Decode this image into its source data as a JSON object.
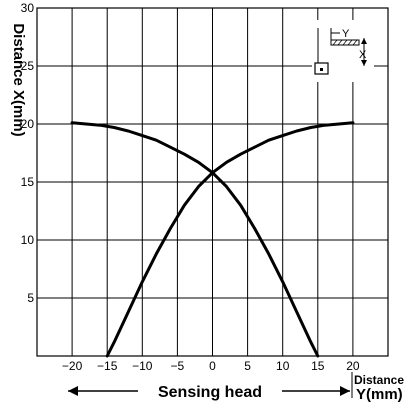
{
  "chart_data": {
    "type": "line",
    "ylabel": "Distance X(mm)",
    "xlabel": "Sensing head",
    "xlabel_right_top": "Distance",
    "xlabel_right_bottom": "Y(mm)",
    "xlim": [
      -25,
      25
    ],
    "ylim": [
      0,
      30
    ],
    "x_ticks": [
      -20,
      -15,
      -10,
      -5,
      0,
      5,
      10,
      15,
      20
    ],
    "x_tick_labels": [
      "−20",
      "−15",
      "−10",
      "−5",
      "0",
      "5",
      "10",
      "15",
      "20"
    ],
    "y_ticks": [
      5,
      10,
      15,
      20,
      25,
      30
    ],
    "y_tick_labels": [
      "5",
      "10",
      "15",
      "20",
      "25",
      "30"
    ],
    "grid": true,
    "series": [
      {
        "x": [
          -20,
          -18,
          -16,
          -14,
          -12,
          -10,
          -8,
          -6,
          -4,
          -2,
          0,
          2,
          4,
          6,
          8,
          10,
          12,
          14,
          15
        ],
        "y": [
          20.1,
          20.0,
          19.9,
          19.7,
          19.4,
          19.0,
          18.6,
          18.0,
          17.4,
          16.7,
          15.8,
          14.6,
          13.0,
          11.0,
          8.8,
          6.4,
          3.8,
          1.2,
          0.0
        ]
      },
      {
        "x": [
          -15,
          -14,
          -12,
          -10,
          -8,
          -6,
          -4,
          -2,
          0,
          2,
          4,
          6,
          8,
          10,
          12,
          14,
          16,
          18,
          20
        ],
        "y": [
          0.0,
          1.2,
          3.8,
          6.4,
          8.8,
          11.0,
          13.0,
          14.6,
          15.8,
          16.7,
          17.4,
          18.0,
          18.6,
          19.0,
          19.4,
          19.7,
          19.9,
          20.0,
          20.1
        ]
      }
    ],
    "inset_labels": {
      "y": "Y",
      "x": "X"
    }
  }
}
